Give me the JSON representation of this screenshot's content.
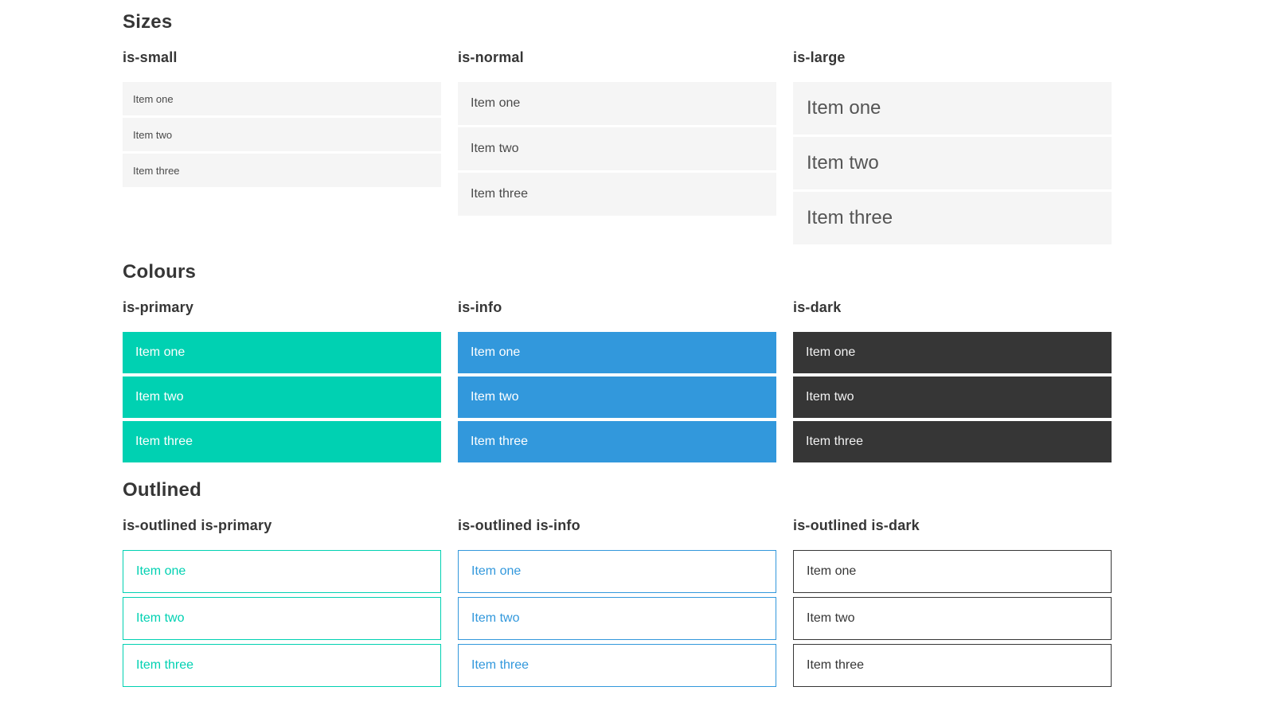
{
  "colors": {
    "primary": "#00d1b2",
    "info": "#3298dc",
    "dark": "#363636",
    "heading_text": "#363636",
    "item_background": "#f5f5f5",
    "item_text": "#4a4a4a"
  },
  "sections": [
    {
      "title": "Sizes",
      "groups": [
        {
          "label": "is-small",
          "variant": "size-small",
          "items": [
            "Item one",
            "Item two",
            "Item three"
          ]
        },
        {
          "label": "is-normal",
          "variant": "size-normal",
          "items": [
            "Item one",
            "Item two",
            "Item three"
          ]
        },
        {
          "label": "is-large",
          "variant": "size-large",
          "items": [
            "Item one",
            "Item two",
            "Item three"
          ]
        }
      ]
    },
    {
      "title": "Colours",
      "groups": [
        {
          "label": "is-primary",
          "variant": "color-primary",
          "items": [
            "Item one",
            "Item two",
            "Item three"
          ]
        },
        {
          "label": "is-info",
          "variant": "color-info",
          "items": [
            "Item one",
            "Item two",
            "Item three"
          ]
        },
        {
          "label": "is-dark",
          "variant": "color-dark",
          "items": [
            "Item one",
            "Item two",
            "Item three"
          ]
        }
      ]
    },
    {
      "title": "Outlined",
      "groups": [
        {
          "label": "is-outlined is-primary",
          "variant": "outlined-primary",
          "items": [
            "Item one",
            "Item two",
            "Item three"
          ]
        },
        {
          "label": "is-outlined is-info",
          "variant": "outlined-info",
          "items": [
            "Item one",
            "Item two",
            "Item three"
          ]
        },
        {
          "label": "is-outlined is-dark",
          "variant": "outlined-dark",
          "items": [
            "Item one",
            "Item two",
            "Item three"
          ]
        }
      ]
    }
  ]
}
